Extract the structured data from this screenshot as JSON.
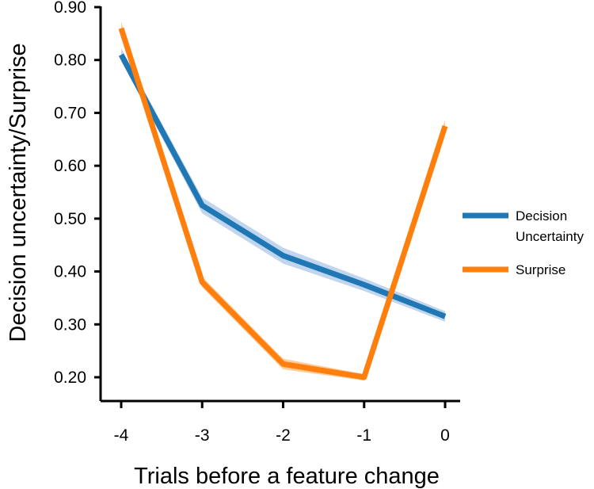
{
  "chart_data": {
    "type": "line",
    "title": "",
    "xlabel": "Trials before a feature change",
    "ylabel": "Decision uncertainty/Surprise",
    "x": [
      -4,
      -3,
      -2,
      -1,
      0
    ],
    "x_tick_labels": [
      "-4",
      "-3",
      "-2",
      "-1",
      "0"
    ],
    "y_ticks": [
      0.2,
      0.3,
      0.4,
      0.5,
      0.6,
      0.7,
      0.8,
      0.9
    ],
    "y_tick_labels": [
      "0.20",
      "0.30",
      "0.40",
      "0.50",
      "0.60",
      "0.70",
      "0.80",
      "0.90"
    ],
    "xlim": [
      -4,
      0
    ],
    "ylim": [
      0.2,
      0.9
    ],
    "grid": false,
    "legend_position": "right",
    "series": [
      {
        "name": "Decision Uncertainty",
        "legend_lines": [
          "Decision",
          "Uncertainty"
        ],
        "color": "#1f77b4",
        "band_color": "#aec7e8",
        "values": [
          0.81,
          0.525,
          0.43,
          0.375,
          0.315
        ],
        "error": [
          0.012,
          0.015,
          0.015,
          0.012,
          0.01
        ]
      },
      {
        "name": "Surprise",
        "legend_lines": [
          "Surprise"
        ],
        "color": "#ff7f0e",
        "band_color": "#ffbb78",
        "values": [
          0.86,
          0.38,
          0.225,
          0.2,
          0.675
        ],
        "error": [
          0.012,
          0.01,
          0.01,
          0.006,
          0.012
        ]
      }
    ]
  }
}
